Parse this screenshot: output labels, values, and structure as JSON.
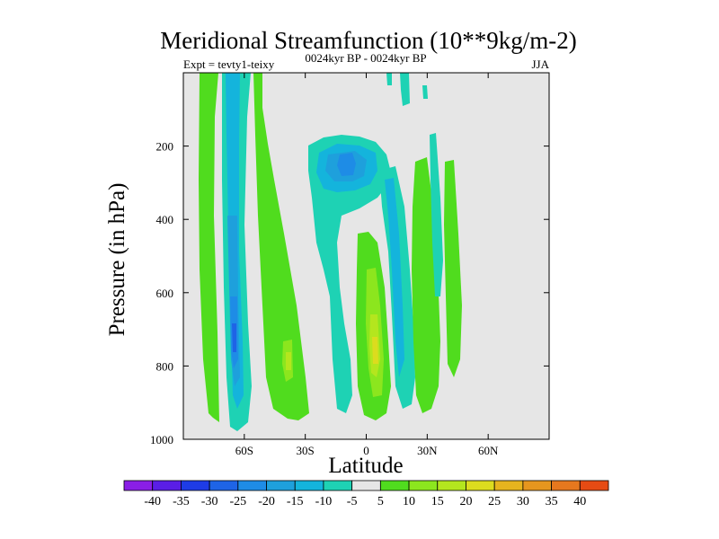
{
  "chart_data": {
    "type": "heatmap",
    "title": "Meridional Streamfunction (10**9kg/m-2)",
    "left_label": "Expt = tevty1-teixy",
    "center_label": "0024kyr BP - 0024kyr BP",
    "right_label": "JJA",
    "xlabel": "Latitude",
    "ylabel": "Pressure (in hPa)",
    "xlim": [
      -90,
      90
    ],
    "ylim": [
      0,
      1000
    ],
    "y_inverted": true,
    "x_ticks": [
      -60,
      -30,
      0,
      30,
      60
    ],
    "x_tick_labels": [
      "60S",
      "30S",
      "0",
      "30N",
      "60N"
    ],
    "y_ticks": [
      200,
      400,
      600,
      800,
      1000
    ],
    "y_tick_labels": [
      "200",
      "400",
      "600",
      "800",
      "1000"
    ],
    "colorbar": {
      "levels": [
        -40,
        -35,
        -30,
        -25,
        -20,
        -15,
        -10,
        -5,
        5,
        10,
        15,
        20,
        25,
        30,
        35,
        40
      ],
      "level_labels": [
        "-40",
        "-35",
        "-30",
        "-25",
        "-20",
        "-15",
        "-10",
        "-5",
        "5",
        "10",
        "15",
        "20",
        "25",
        "30",
        "35",
        "40"
      ],
      "colors": [
        "#8a1ee6",
        "#5a1ee6",
        "#1e3ce6",
        "#1e64e6",
        "#1e8ce6",
        "#1ea0dc",
        "#14b4dc",
        "#1ed2b4",
        "#e6e6e6",
        "#50dc1e",
        "#8ce61e",
        "#b4e61e",
        "#dcdc1e",
        "#e6b41e",
        "#e6961e",
        "#e6781e",
        "#e64b14"
      ]
    },
    "background_color": "#e6e6e6",
    "features": [
      {
        "name": "southern-midlat-negative-column",
        "lat_range": [
          -68,
          -56
        ],
        "p_range": [
          0,
          975
        ],
        "min_value": -25
      },
      {
        "name": "southern-highlat-positive-band",
        "lat_range": [
          -80,
          -70
        ],
        "p_range": [
          0,
          960
        ],
        "min_value": 5
      },
      {
        "name": "southern-subtropics-positive-band",
        "lat_range": [
          -52,
          -32
        ],
        "p_range": [
          0,
          960
        ],
        "max_value": 15
      },
      {
        "name": "upper-tropical-negative-cell",
        "lat_range": [
          -26,
          10
        ],
        "p_range": [
          140,
          300
        ],
        "min_value": -20
      },
      {
        "name": "tropical-negative-tongue",
        "lat_range": [
          -12,
          0
        ],
        "p_range": [
          300,
          960
        ],
        "min_value": -5
      },
      {
        "name": "equatorial-positive-column",
        "lat_range": [
          -4,
          10
        ],
        "p_range": [
          420,
          960
        ],
        "max_value": 20
      },
      {
        "name": "northern-negative-column",
        "lat_range": [
          9,
          26
        ],
        "p_range": [
          100,
          950
        ],
        "min_value": -10
      },
      {
        "name": "northern-positive-band",
        "lat_range": [
          20,
          34
        ],
        "p_range": [
          200,
          900
        ],
        "max_value": 5
      },
      {
        "name": "northern-midlat-negative-band",
        "lat_range": [
          32,
          40
        ],
        "p_range": [
          100,
          700
        ],
        "min_value": -5
      },
      {
        "name": "northern-midlat-positive-band",
        "lat_range": [
          40,
          47
        ],
        "p_range": [
          200,
          800
        ],
        "max_value": 5
      }
    ]
  }
}
